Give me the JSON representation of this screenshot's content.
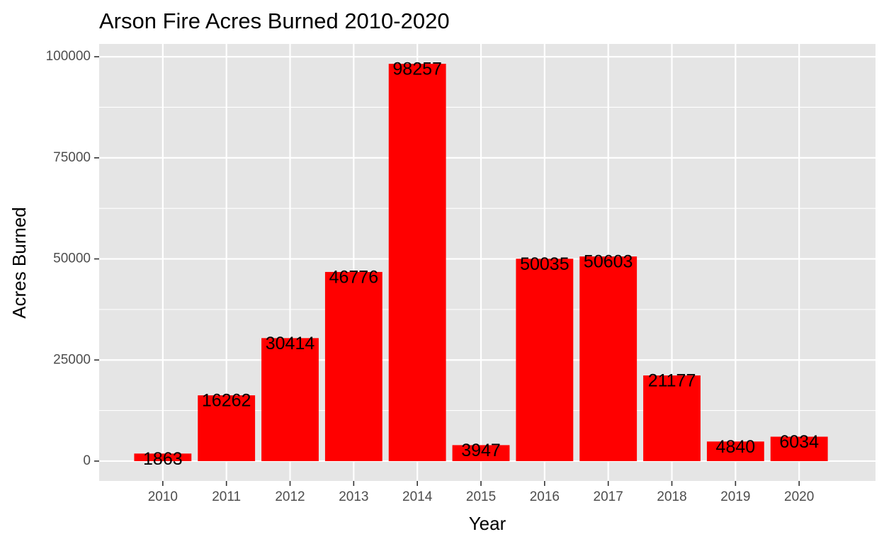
{
  "chart_data": {
    "type": "bar",
    "title": "Arson Fire Acres Burned 2010-2020",
    "xlabel": "Year",
    "ylabel": "Acres Burned",
    "categories": [
      "2010",
      "2011",
      "2012",
      "2013",
      "2014",
      "2015",
      "2016",
      "2017",
      "2018",
      "2019",
      "2020"
    ],
    "values": [
      1863,
      16262,
      30414,
      46776,
      98257,
      3947,
      50035,
      50603,
      21177,
      4840,
      6034
    ],
    "data_labels": [
      "1863",
      "16262",
      "30414",
      "46776",
      "98257",
      "3947",
      "50035",
      "50603",
      "21177",
      "4840",
      "6034"
    ],
    "y_ticks": [
      0,
      25000,
      50000,
      75000,
      100000
    ],
    "y_tick_labels": [
      "0",
      "25000",
      "50000",
      "75000",
      "100000"
    ],
    "ylim": [
      -4913,
      103170
    ],
    "grid": true,
    "legend": "none",
    "colors": {
      "bar": "#ff0000",
      "panel": "#e5e5e5",
      "grid": "#ffffff",
      "text": "#000000",
      "tick_text": "#4d4d4d",
      "tick_mark": "#333333"
    }
  }
}
